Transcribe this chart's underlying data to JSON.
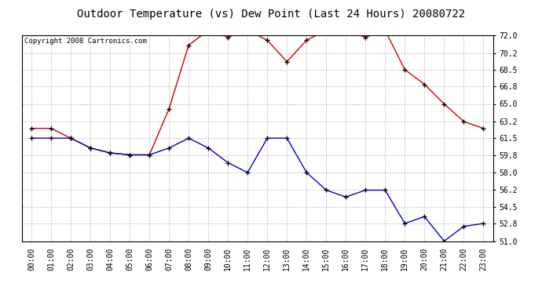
{
  "title": "Outdoor Temperature (vs) Dew Point (Last 24 Hours) 20080722",
  "copyright_text": "Copyright 2008 Cartronics.com",
  "hours": [
    "00:00",
    "01:00",
    "02:00",
    "03:00",
    "04:00",
    "05:00",
    "06:00",
    "07:00",
    "08:00",
    "09:00",
    "10:00",
    "11:00",
    "12:00",
    "13:00",
    "14:00",
    "15:00",
    "16:00",
    "17:00",
    "18:00",
    "19:00",
    "20:00",
    "21:00",
    "22:00",
    "23:00"
  ],
  "temp": [
    62.5,
    62.5,
    61.5,
    60.5,
    60.0,
    59.8,
    59.8,
    64.5,
    71.0,
    72.5,
    71.8,
    72.5,
    71.5,
    69.3,
    71.5,
    72.5,
    72.5,
    71.8,
    72.5,
    68.5,
    67.0,
    65.0,
    63.2,
    62.5
  ],
  "dew": [
    61.5,
    61.5,
    61.5,
    60.5,
    60.0,
    59.8,
    59.8,
    60.5,
    61.5,
    60.5,
    59.0,
    58.0,
    61.5,
    61.5,
    58.0,
    56.2,
    55.5,
    56.2,
    56.2,
    52.8,
    53.5,
    51.0,
    52.5,
    52.8
  ],
  "ylim": [
    51.0,
    72.0
  ],
  "yticks": [
    51.0,
    52.8,
    54.5,
    56.2,
    58.0,
    59.8,
    61.5,
    63.2,
    65.0,
    66.8,
    68.5,
    70.2,
    72.0
  ],
  "temp_color": "#cc0000",
  "dew_color": "#0000cc",
  "grid_color": "#bbbbbb",
  "bg_color": "#ffffff",
  "title_fontsize": 10,
  "axis_fontsize": 7,
  "copyright_fontsize": 6.5
}
